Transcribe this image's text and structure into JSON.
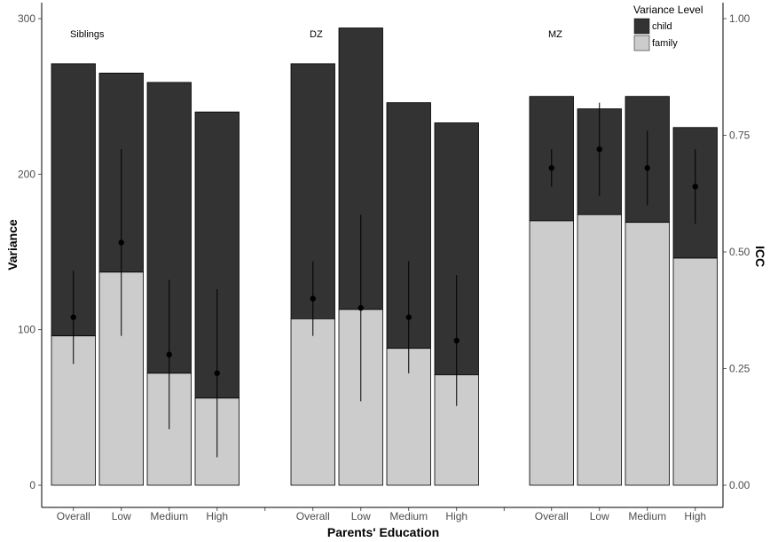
{
  "chart_data": {
    "type": "bar",
    "stacked": true,
    "xlabel": "Parents' Education",
    "ylabel": "Variance",
    "y2label": "ICC",
    "ylim": [
      0,
      300
    ],
    "y2lim": [
      0,
      1
    ],
    "yticks": [
      0,
      100,
      200,
      300
    ],
    "y2ticks": [
      "0.00",
      "0.25",
      "0.50",
      "0.75",
      "1.00"
    ],
    "categories": [
      "Overall",
      "Low",
      "Medium",
      "High"
    ],
    "legend": {
      "title": "Variance Level",
      "position": "top-right",
      "items": [
        {
          "label": "child",
          "color": "#333333"
        },
        {
          "label": "family",
          "color": "#cccccc"
        }
      ]
    },
    "groups": [
      {
        "name": "Siblings",
        "family": [
          96,
          137,
          72,
          56
        ],
        "total": [
          271,
          265,
          259,
          240
        ],
        "icc": [
          0.36,
          0.52,
          0.28,
          0.24
        ],
        "icc_low": [
          0.26,
          0.32,
          0.12,
          0.06
        ],
        "icc_high": [
          0.46,
          0.72,
          0.44,
          0.42
        ]
      },
      {
        "name": "DZ",
        "family": [
          107,
          113,
          88,
          71
        ],
        "total": [
          271,
          294,
          246,
          233
        ],
        "icc": [
          0.4,
          0.38,
          0.36,
          0.31
        ],
        "icc_low": [
          0.32,
          0.18,
          0.24,
          0.17
        ],
        "icc_high": [
          0.48,
          0.58,
          0.48,
          0.45
        ]
      },
      {
        "name": "MZ",
        "family": [
          170,
          174,
          169,
          146
        ],
        "total": [
          250,
          242,
          250,
          230
        ],
        "icc": [
          0.68,
          0.72,
          0.68,
          0.64
        ],
        "icc_low": [
          0.64,
          0.62,
          0.6,
          0.56
        ],
        "icc_high": [
          0.72,
          0.82,
          0.76,
          0.72
        ]
      }
    ]
  }
}
